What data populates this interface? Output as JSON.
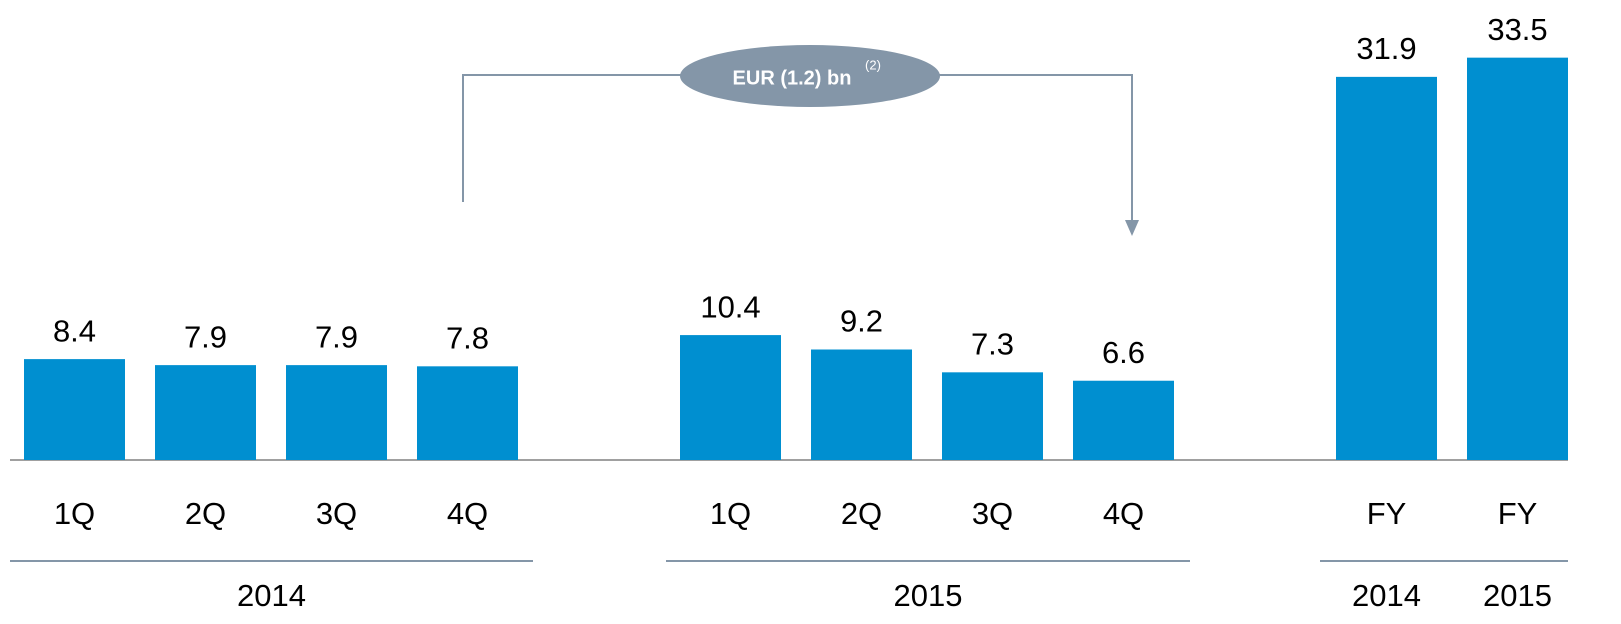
{
  "chart_data": {
    "type": "bar",
    "color": "#008fd0",
    "ylim": [
      0,
      38.3
    ],
    "annotation": {
      "text": "EUR (1.2) bn",
      "superscript": "(2)"
    },
    "groups": [
      {
        "label": "2014",
        "categories": [
          "1Q",
          "2Q",
          "3Q",
          "4Q"
        ],
        "values": [
          8.4,
          7.9,
          7.9,
          7.8
        ]
      },
      {
        "label": "2015",
        "categories": [
          "1Q",
          "2Q",
          "3Q",
          "4Q"
        ],
        "values": [
          10.4,
          9.2,
          7.3,
          6.6
        ]
      },
      {
        "labels": [
          "2014",
          "2015"
        ],
        "categories": [
          "FY",
          "FY"
        ],
        "values": [
          31.9,
          33.5
        ]
      }
    ]
  }
}
